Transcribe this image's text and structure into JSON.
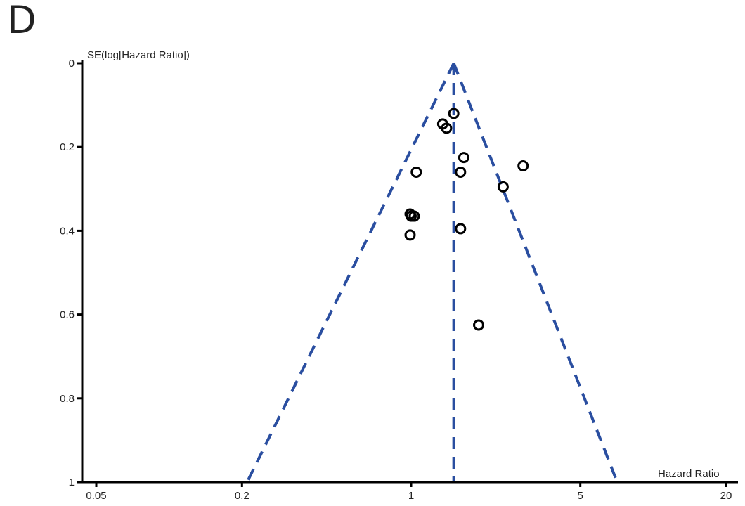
{
  "panel_label": "D",
  "chart_data": {
    "type": "scatter",
    "subtype": "funnel-plot",
    "title": "",
    "xlabel": "Hazard Ratio",
    "ylabel": "SE(log[Hazard Ratio])",
    "x_scale": "log",
    "x_ticks": [
      0.05,
      0.2,
      1,
      5,
      20
    ],
    "x_tick_labels": [
      "0.05",
      "0.2",
      "1",
      "5",
      "20"
    ],
    "xlim": [
      0.045,
      21
    ],
    "y_inverted": true,
    "y_ticks": [
      0,
      0.2,
      0.4,
      0.6,
      0.8,
      1
    ],
    "y_tick_labels": [
      "0",
      "0.2",
      "0.4",
      "0.6",
      "0.8",
      "1"
    ],
    "ylim": [
      0,
      1
    ],
    "pooled_estimate": 1.5,
    "funnel_limits_at_se_1": [
      0.21,
      7.1
    ],
    "line_color": "#2a4ea0",
    "marker_color": "#000000",
    "points": [
      {
        "x": 1.5,
        "y": 0.12
      },
      {
        "x": 1.35,
        "y": 0.145
      },
      {
        "x": 1.4,
        "y": 0.155
      },
      {
        "x": 1.65,
        "y": 0.225
      },
      {
        "x": 1.05,
        "y": 0.26
      },
      {
        "x": 1.6,
        "y": 0.26
      },
      {
        "x": 2.9,
        "y": 0.245
      },
      {
        "x": 2.4,
        "y": 0.295
      },
      {
        "x": 0.99,
        "y": 0.36
      },
      {
        "x": 1.0,
        "y": 0.365
      },
      {
        "x": 1.03,
        "y": 0.365
      },
      {
        "x": 1.6,
        "y": 0.395
      },
      {
        "x": 0.99,
        "y": 0.41
      },
      {
        "x": 1.9,
        "y": 0.625
      }
    ]
  }
}
